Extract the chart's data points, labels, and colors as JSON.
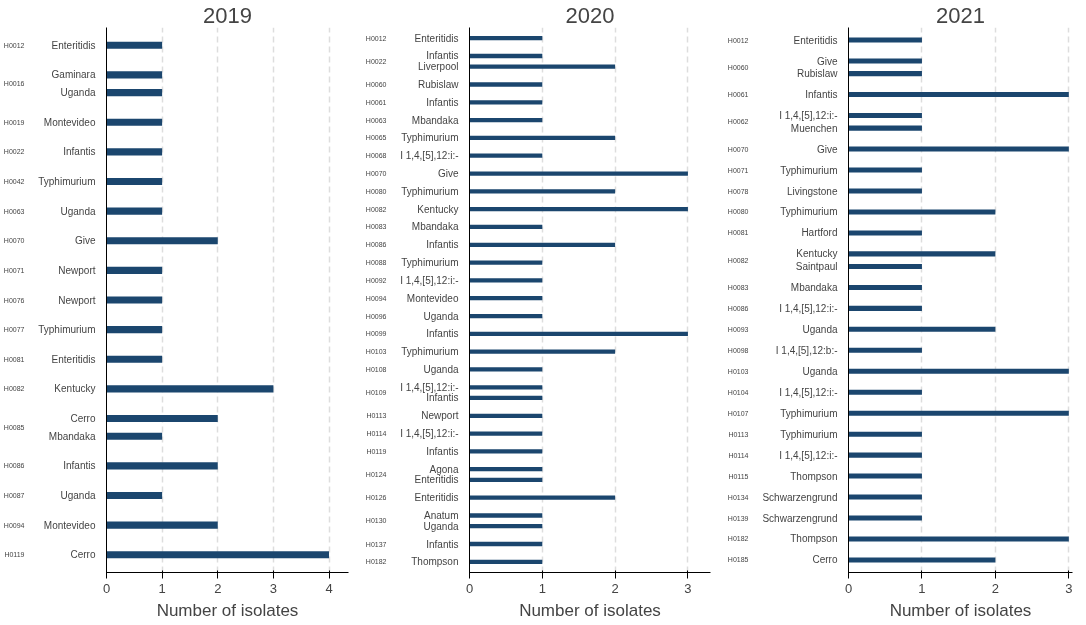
{
  "chart_data": [
    {
      "type": "bar",
      "orientation": "horizontal",
      "title": "2019",
      "xlabel": "Number of isolates",
      "color": "#1b466e",
      "xlim": [
        0,
        4.35
      ],
      "xticks": [
        0,
        1,
        2,
        3,
        4
      ],
      "grid": "x",
      "legend": false,
      "categories": [
        "Enteritidis",
        "Gaminara",
        "Uganda",
        "Montevideo",
        "Infantis",
        "Typhimurium",
        "Uganda",
        "Give",
        "Newport",
        "Newport",
        "Typhimurium",
        "Enteritidis",
        "Kentucky",
        "Cerro",
        "Mbandaka",
        "Infantis",
        "Uganda",
        "Montevideo",
        "Cerro"
      ],
      "values": [
        1,
        1,
        1,
        1,
        1,
        1,
        1,
        2,
        1,
        1,
        1,
        1,
        3,
        2,
        1,
        2,
        1,
        2,
        4
      ],
      "annotations": [
        "H0012",
        "H0016",
        "H0019",
        "H0022",
        "H0042",
        "H0063",
        "H0070",
        "H0071",
        "H0076",
        "H0077",
        "H0081",
        "H0082",
        "H0085",
        "H0086",
        "H0087",
        "H0094",
        "H0119"
      ]
    },
    {
      "type": "bar",
      "orientation": "horizontal",
      "title": "2020",
      "xlabel": "Number of isolates",
      "color": "#1b466e",
      "xlim": [
        0,
        3.31
      ],
      "xticks": [
        0,
        1,
        2,
        3
      ],
      "grid": "x",
      "legend": false,
      "categories": [
        "Enteritidis",
        "Infantis",
        "Liverpool",
        "Rubislaw",
        "Infantis",
        "Mbandaka",
        "Typhimurium",
        "I 1,4,[5],12:i:-",
        "Give",
        "Typhimurium",
        "Kentucky",
        "Mbandaka",
        "Infantis",
        "Typhimurium",
        "I 1,4,[5],12:i:-",
        "Montevideo",
        "Uganda",
        "Infantis",
        "Typhimurium",
        "Uganda",
        "I 1,4,[5],12:i:-",
        "Infantis",
        "Newport",
        "I 1,4,[5],12:i:-",
        "Infantis",
        "Agona",
        "Enteritidis",
        "Enteritidis",
        "Anatum",
        "Uganda",
        "Infantis",
        "Thompson"
      ],
      "values": [
        1,
        1,
        2,
        1,
        1,
        1,
        2,
        1,
        3,
        2,
        3,
        1,
        2,
        1,
        1,
        1,
        1,
        3,
        2,
        1,
        1,
        1,
        1,
        1,
        1,
        1,
        1,
        2,
        1,
        1,
        1,
        1
      ],
      "annotations": [
        "H0012",
        "H0022",
        "H0060",
        "H0061",
        "H0063",
        "H0065",
        "H0068",
        "H0070",
        "H0080",
        "H0082",
        "H0083",
        "H0086",
        "H0088",
        "H0092",
        "H0094",
        "H0096",
        "H0099",
        "H0103",
        "H0108",
        "H0109",
        "H0113",
        "H0114",
        "H0119",
        "H0124",
        "H0126",
        "H0130",
        "H0137",
        "H0182"
      ]
    },
    {
      "type": "bar",
      "orientation": "horizontal",
      "title": "2021",
      "xlabel": "Number of isolates",
      "color": "#1b466e",
      "xlim": [
        0,
        3.05
      ],
      "xticks": [
        0,
        1,
        2,
        3
      ],
      "grid": "x",
      "legend": false,
      "categories": [
        "Enteritidis",
        "Give",
        "Rubislaw",
        "Infantis",
        "I 1,4,[5],12:i:-",
        "Muenchen",
        "Give",
        "Typhimurium",
        "Livingstone",
        "Typhimurium",
        "Hartford",
        "Kentucky",
        "Saintpaul",
        "Mbandaka",
        "I 1,4,[5],12:i:-",
        "Uganda",
        "I 1,4,[5],12:b:-",
        "Uganda",
        "I 1,4,[5],12:i:-",
        "Typhimurium",
        "Typhimurium",
        "I 1,4,[5],12:i:-",
        "Thompson",
        "Schwarzengrund",
        "Schwarzengrund",
        "Thompson",
        "Cerro"
      ],
      "values": [
        1,
        1,
        1,
        3,
        1,
        1,
        3,
        1,
        1,
        2,
        1,
        2,
        1,
        1,
        1,
        2,
        1,
        3,
        1,
        3,
        1,
        1,
        1,
        1,
        1,
        3,
        2
      ],
      "annotations": [
        "H0012",
        "H0060",
        "H0061",
        "H0062",
        "H0070",
        "H0071",
        "H0078",
        "H0080",
        "H0081",
        "H0082",
        "H0083",
        "H0086",
        "H0093",
        "H0098",
        "H0103",
        "H0104",
        "H0107",
        "H0113",
        "H0114",
        "H0115",
        "H0134",
        "H0139",
        "H0182",
        "H0185"
      ]
    }
  ]
}
